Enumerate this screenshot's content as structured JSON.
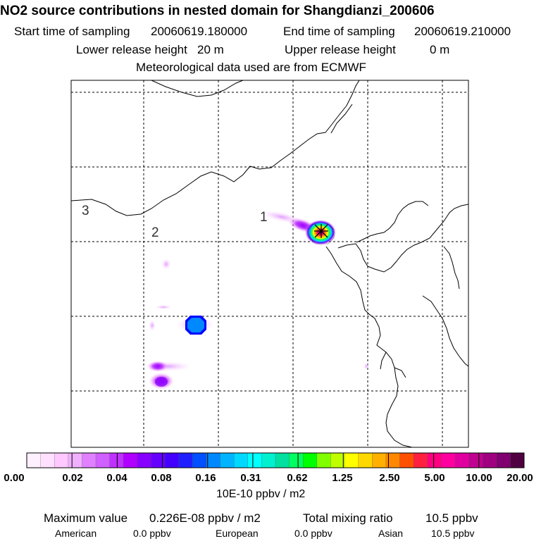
{
  "header": {
    "title": "NO2 source contributions in nested domain for Shangdianzi_200606",
    "start_label": "Start time of sampling",
    "start_value": "20060619.180000",
    "end_label": "End time of sampling",
    "end_value": "20060619.210000",
    "lower_label": "Lower release height",
    "lower_value": "20 m",
    "upper_label": "Upper release height",
    "upper_value": "0 m",
    "met_line": "Meteorological data used are from ECMWF"
  },
  "map": {
    "region_labels": [
      "1",
      "2",
      "3"
    ]
  },
  "colorbar": {
    "colors": [
      "#fff0ff",
      "#ffe0ff",
      "#ffc8ff",
      "#f0b0ff",
      "#e080ff",
      "#d060ff",
      "#c030ff",
      "#b000ff",
      "#8800ff",
      "#6600ff",
      "#4400ff",
      "#2020ff",
      "#0050ff",
      "#0088ff",
      "#00b4ff",
      "#00d8ff",
      "#00ffff",
      "#00f0d0",
      "#00e0a0",
      "#00ff60",
      "#00ff00",
      "#80ff00",
      "#c0ff00",
      "#ffff00",
      "#ffd800",
      "#ffb000",
      "#ff8800",
      "#ff5000",
      "#ff2040",
      "#ff0080",
      "#ff00a0",
      "#e000a0",
      "#c00090",
      "#a00080",
      "#800070",
      "#500040"
    ],
    "tick_labels": [
      "0.00",
      "0.02",
      "0.04",
      "0.08",
      "0.16",
      "0.31",
      "0.62",
      "1.25",
      "2.50",
      "5.00",
      "10.00",
      "20.00"
    ],
    "units": "10E-10 ppbv / m2"
  },
  "footer": {
    "max_label": "Maximum value",
    "max_value": "0.226E-08 ppbv / m2",
    "total_label": "Total mixing ratio",
    "total_value": "10.5 ppbv",
    "american_label": "American",
    "american_value": "0.0 ppbv",
    "european_label": "European",
    "european_value": "0.0 ppbv",
    "asian_label": "Asian",
    "asian_value": "10.5 ppbv"
  }
}
